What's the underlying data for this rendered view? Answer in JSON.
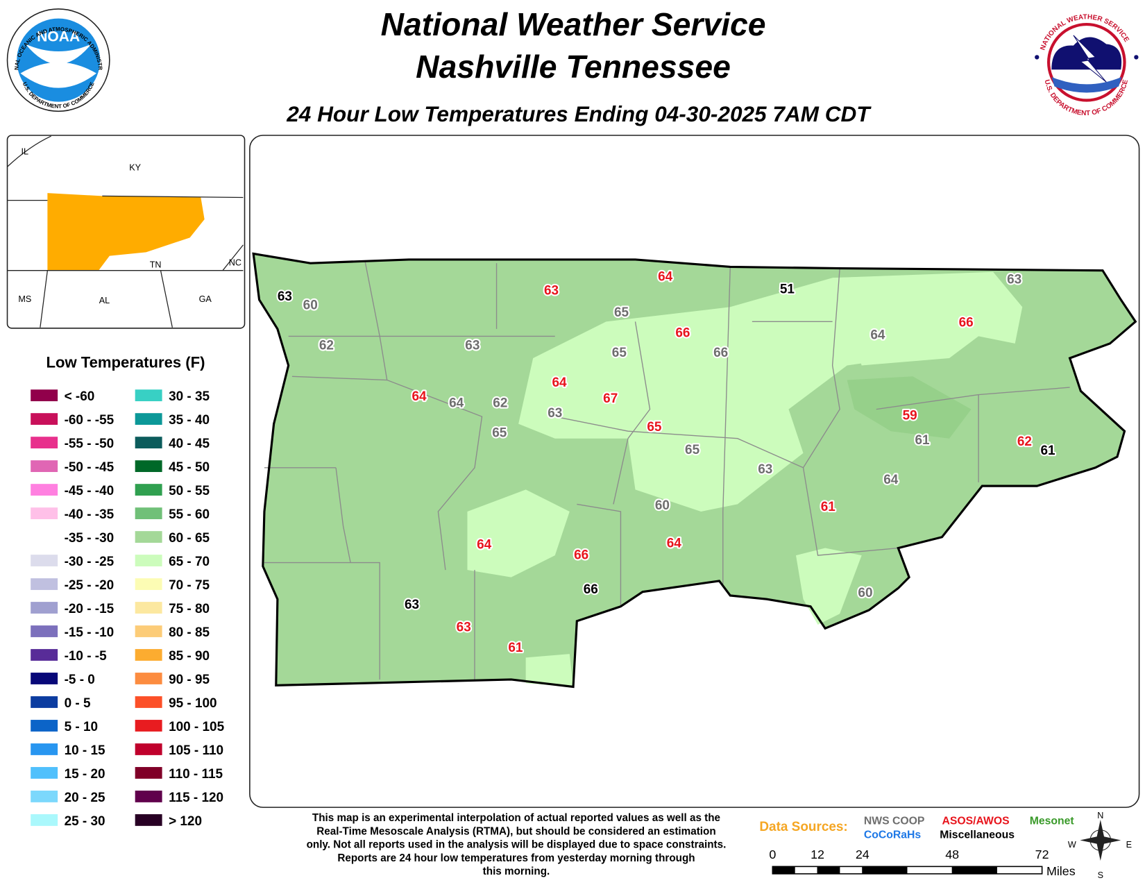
{
  "header": {
    "title_lines": [
      "National Weather Service",
      "Nashville Tennessee"
    ],
    "subtitle": "24 Hour Low Temperatures Ending 04-30-2025 7AM CDT"
  },
  "logos": {
    "noaa": {
      "name": "NOAA",
      "ring_top": "NATIONAL OCEANIC AND ATMOSPHERIC ADMINISTRATION",
      "ring_bottom": "U.S. DEPARTMENT OF COMMERCE"
    },
    "nws": {
      "ring_top": "NATIONAL WEATHER SERVICE",
      "ring_bottom": "U.S. DEPARTMENT OF COMMERCE"
    }
  },
  "inset": {
    "labels": [
      "IL",
      "KY",
      "TN",
      "NC",
      "MS",
      "AL",
      "GA"
    ],
    "highlight_color": "#ffac00"
  },
  "legend": {
    "title": "Low Temperatures (F)",
    "items": [
      {
        "label": "< -60",
        "color": "#91004b"
      },
      {
        "label": "-60 - -55",
        "color": "#c8105a"
      },
      {
        "label": "-55 - -50",
        "color": "#e8308c"
      },
      {
        "label": "-50 - -45",
        "color": "#e066b4"
      },
      {
        "label": "-45 - -40",
        "color": "#ff80e0"
      },
      {
        "label": "-40 - -35",
        "color": "#ffc0e8"
      },
      {
        "label": "-35 - -30",
        "color": "#ffffff"
      },
      {
        "label": "-30 - -25",
        "color": "#dcdcec"
      },
      {
        "label": "-25 - -20",
        "color": "#c0c0e0"
      },
      {
        "label": "-20 - -15",
        "color": "#a0a0d0"
      },
      {
        "label": "-15 - -10",
        "color": "#7c70bc"
      },
      {
        "label": "-10 - -5",
        "color": "#582c98"
      },
      {
        "label": "-5 - 0",
        "color": "#080878"
      },
      {
        "label": "0 - 5",
        "color": "#0c3ca0"
      },
      {
        "label": "5 - 10",
        "color": "#0c64c8"
      },
      {
        "label": "10 - 15",
        "color": "#2896f0"
      },
      {
        "label": "15 - 20",
        "color": "#50c0fc"
      },
      {
        "label": "20 - 25",
        "color": "#7cd8fc"
      },
      {
        "label": "25 - 30",
        "color": "#aaf8fc"
      },
      {
        "label": "30 - 35",
        "color": "#38d0c4"
      },
      {
        "label": "35 - 40",
        "color": "#0c9898"
      },
      {
        "label": "40 - 45",
        "color": "#0c5c5c"
      },
      {
        "label": "45 - 50",
        "color": "#006828"
      },
      {
        "label": "50 - 55",
        "color": "#30a050"
      },
      {
        "label": "55 - 60",
        "color": "#70c078"
      },
      {
        "label": "60 - 65",
        "color": "#a4d898"
      },
      {
        "label": "65 - 70",
        "color": "#ccfcbc"
      },
      {
        "label": "70 - 75",
        "color": "#fcfcb4"
      },
      {
        "label": "75 - 80",
        "color": "#fce8a0"
      },
      {
        "label": "80 - 85",
        "color": "#fccc78"
      },
      {
        "label": "85 - 90",
        "color": "#fcac30"
      },
      {
        "label": "90 - 95",
        "color": "#fc8c40"
      },
      {
        "label": "95 - 100",
        "color": "#fc5028"
      },
      {
        "label": "100 - 105",
        "color": "#e81c20"
      },
      {
        "label": "105 - 110",
        "color": "#c0002c"
      },
      {
        "label": "110 - 115",
        "color": "#800028"
      },
      {
        "label": "115 - 120",
        "color": "#60004c"
      },
      {
        "label": "> 120",
        "color": "#280024"
      }
    ]
  },
  "stations": [
    {
      "value": 63,
      "color": "#000000"
    },
    {
      "value": 60,
      "color": "#6e6e6e"
    },
    {
      "value": 62,
      "color": "#6e6e6e"
    },
    {
      "value": 63,
      "color": "#6e6e6e"
    },
    {
      "value": 63,
      "color": "#e8141c"
    },
    {
      "value": 64,
      "color": "#e8141c"
    },
    {
      "value": 65,
      "color": "#6e6e6e"
    },
    {
      "value": 51,
      "color": "#000000"
    },
    {
      "value": 63,
      "color": "#6e6e6e"
    },
    {
      "value": 66,
      "color": "#e8141c"
    },
    {
      "value": 65,
      "color": "#6e6e6e"
    },
    {
      "value": 66,
      "color": "#6e6e6e"
    },
    {
      "value": 64,
      "color": "#6e6e6e"
    },
    {
      "value": 66,
      "color": "#e8141c"
    },
    {
      "value": 64,
      "color": "#e8141c"
    },
    {
      "value": 64,
      "color": "#6e6e6e"
    },
    {
      "value": 62,
      "color": "#6e6e6e"
    },
    {
      "value": 64,
      "color": "#e8141c"
    },
    {
      "value": 67,
      "color": "#e8141c"
    },
    {
      "value": 63,
      "color": "#6e6e6e"
    },
    {
      "value": 65,
      "color": "#6e6e6e"
    },
    {
      "value": 65,
      "color": "#e8141c"
    },
    {
      "value": 65,
      "color": "#6e6e6e"
    },
    {
      "value": 59,
      "color": "#e8141c"
    },
    {
      "value": 61,
      "color": "#6e6e6e"
    },
    {
      "value": 62,
      "color": "#e8141c"
    },
    {
      "value": 61,
      "color": "#000000"
    },
    {
      "value": 63,
      "color": "#6e6e6e"
    },
    {
      "value": 64,
      "color": "#6e6e6e"
    },
    {
      "value": 60,
      "color": "#6e6e6e"
    },
    {
      "value": 61,
      "color": "#e8141c"
    },
    {
      "value": 64,
      "color": "#e8141c"
    },
    {
      "value": 66,
      "color": "#e8141c"
    },
    {
      "value": 64,
      "color": "#e8141c"
    },
    {
      "value": 66,
      "color": "#000000"
    },
    {
      "value": 60,
      "color": "#6e6e6e"
    },
    {
      "value": 63,
      "color": "#000000"
    },
    {
      "value": 63,
      "color": "#e8141c"
    },
    {
      "value": 61,
      "color": "#e8141c"
    }
  ],
  "footnote": [
    "This map is an experimental interpolation of actual reported values as well as the",
    "Real-Time Mesoscale Analysis (RTMA), but should be considered an estimation",
    "only. Not all reports used in the analysis will be displayed due to space constraints.",
    "Reports are 24 hour low temperatures from yesterday morning through",
    "this morning."
  ],
  "data_sources": {
    "label": "Data Sources:",
    "items": [
      {
        "name": "NWS COOP",
        "color": "#6e6e6e"
      },
      {
        "name": "ASOS/AWOS",
        "color": "#e8141c"
      },
      {
        "name": "Mesonet",
        "color": "#3a9a2a"
      },
      {
        "name": "CoCoRaHs",
        "color": "#1e78e6"
      },
      {
        "name": "Miscellaneous",
        "color": "#000000"
      }
    ]
  },
  "scale": {
    "ticks": [
      0,
      12,
      24,
      48,
      72
    ],
    "unit": "Miles"
  },
  "compass": [
    "N",
    "E",
    "S",
    "W"
  ]
}
